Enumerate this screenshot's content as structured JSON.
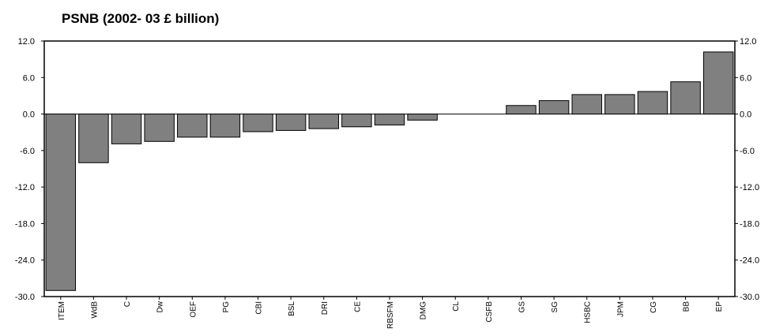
{
  "chart_data": {
    "type": "bar",
    "title": "PSNB (2002- 03 £ billion)",
    "xlabel": "",
    "ylabel": "",
    "ylim": [
      -30,
      12
    ],
    "yticks": [
      12,
      6,
      0,
      -6,
      -12,
      -18,
      -24,
      -30
    ],
    "ytick_labels": [
      "12.0",
      "6.0",
      "0.0",
      "-6.0",
      "-12.0",
      "-18.0",
      "-24.0",
      "-30.0"
    ],
    "grid": false,
    "right_axis": true,
    "bar_color": "#808080",
    "categories": [
      "ITEM",
      "WdB",
      "C",
      "Dw",
      "OEF",
      "PG",
      "CBI",
      "BSL",
      "DRI",
      "CE",
      "RBSFM",
      "DMG",
      "CL",
      "CSFB",
      "GS",
      "SG",
      "HSBC",
      "JPM",
      "CG",
      "BB",
      "EP"
    ],
    "values": [
      -29.0,
      -8.0,
      -4.9,
      -4.5,
      -3.8,
      -3.8,
      -2.9,
      -2.7,
      -2.4,
      -2.1,
      -1.8,
      -1.0,
      0.0,
      0.0,
      1.4,
      2.2,
      3.2,
      3.2,
      3.7,
      5.3,
      10.2
    ]
  }
}
